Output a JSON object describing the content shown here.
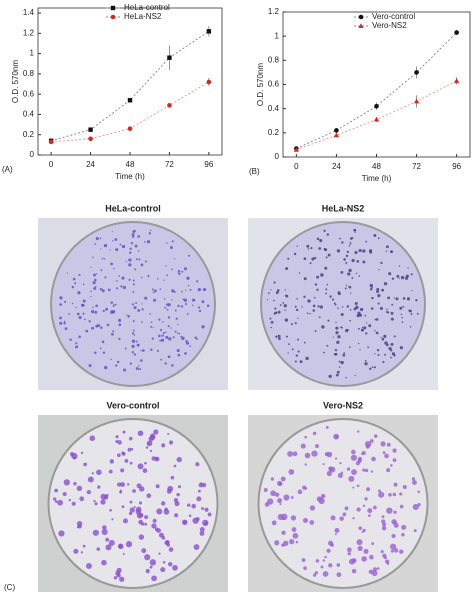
{
  "chart_data": [
    {
      "type": "line",
      "panel_label": "(A)",
      "xlabel": "Time (h)",
      "ylabel": "O.D. 570nm",
      "x": [
        0,
        24,
        48,
        72,
        96
      ],
      "xlim": [
        -8,
        104
      ],
      "xticks": [
        0,
        24,
        48,
        72,
        96
      ],
      "ylim": [
        0,
        1.45
      ],
      "yticks": [
        0,
        0.2,
        0.4,
        0.6,
        0.8,
        1,
        1.2,
        1.4
      ],
      "legend": "top",
      "series": [
        {
          "name": "HeLa-control",
          "color": "#111111",
          "marker": "square",
          "values": [
            0.14,
            0.25,
            0.54,
            0.96,
            1.22
          ],
          "errors": [
            0.02,
            0.02,
            0.01,
            0.12,
            0.05
          ]
        },
        {
          "name": "HeLa-NS2",
          "color": "#e0241b",
          "marker": "circle",
          "values": [
            0.13,
            0.16,
            0.26,
            0.49,
            0.72
          ],
          "errors": [
            0.01,
            0.01,
            0.01,
            0.01,
            0.04
          ]
        }
      ]
    },
    {
      "type": "line",
      "panel_label": "(B)",
      "xlabel": "Time (h)",
      "ylabel": "O.D. 570nm",
      "x": [
        0,
        24,
        48,
        72,
        96
      ],
      "xlim": [
        -8,
        104
      ],
      "xticks": [
        0,
        24,
        48,
        72,
        96
      ],
      "ylim": [
        0,
        1.2
      ],
      "yticks": [
        0,
        0.2,
        0.4,
        0.6,
        0.8,
        1,
        1.2
      ],
      "legend": "top",
      "series": [
        {
          "name": "Vero-control",
          "color": "#111111",
          "marker": "circle",
          "values": [
            0.07,
            0.22,
            0.42,
            0.7,
            1.03
          ],
          "errors": [
            0.01,
            0.02,
            0.03,
            0.05,
            0.02
          ]
        },
        {
          "name": "Vero-NS2",
          "color": "#e0241b",
          "marker": "triangle",
          "values": [
            0.06,
            0.18,
            0.31,
            0.46,
            0.63
          ],
          "errors": [
            0.01,
            0.01,
            0.02,
            0.05,
            0.03
          ]
        }
      ]
    }
  ],
  "photos": {
    "panel_label": "(C)",
    "items": [
      {
        "label": "HeLa-control"
      },
      {
        "label": "HeLa-NS2"
      },
      {
        "label": "Vero-control"
      },
      {
        "label": "Vero-NS2"
      }
    ]
  }
}
